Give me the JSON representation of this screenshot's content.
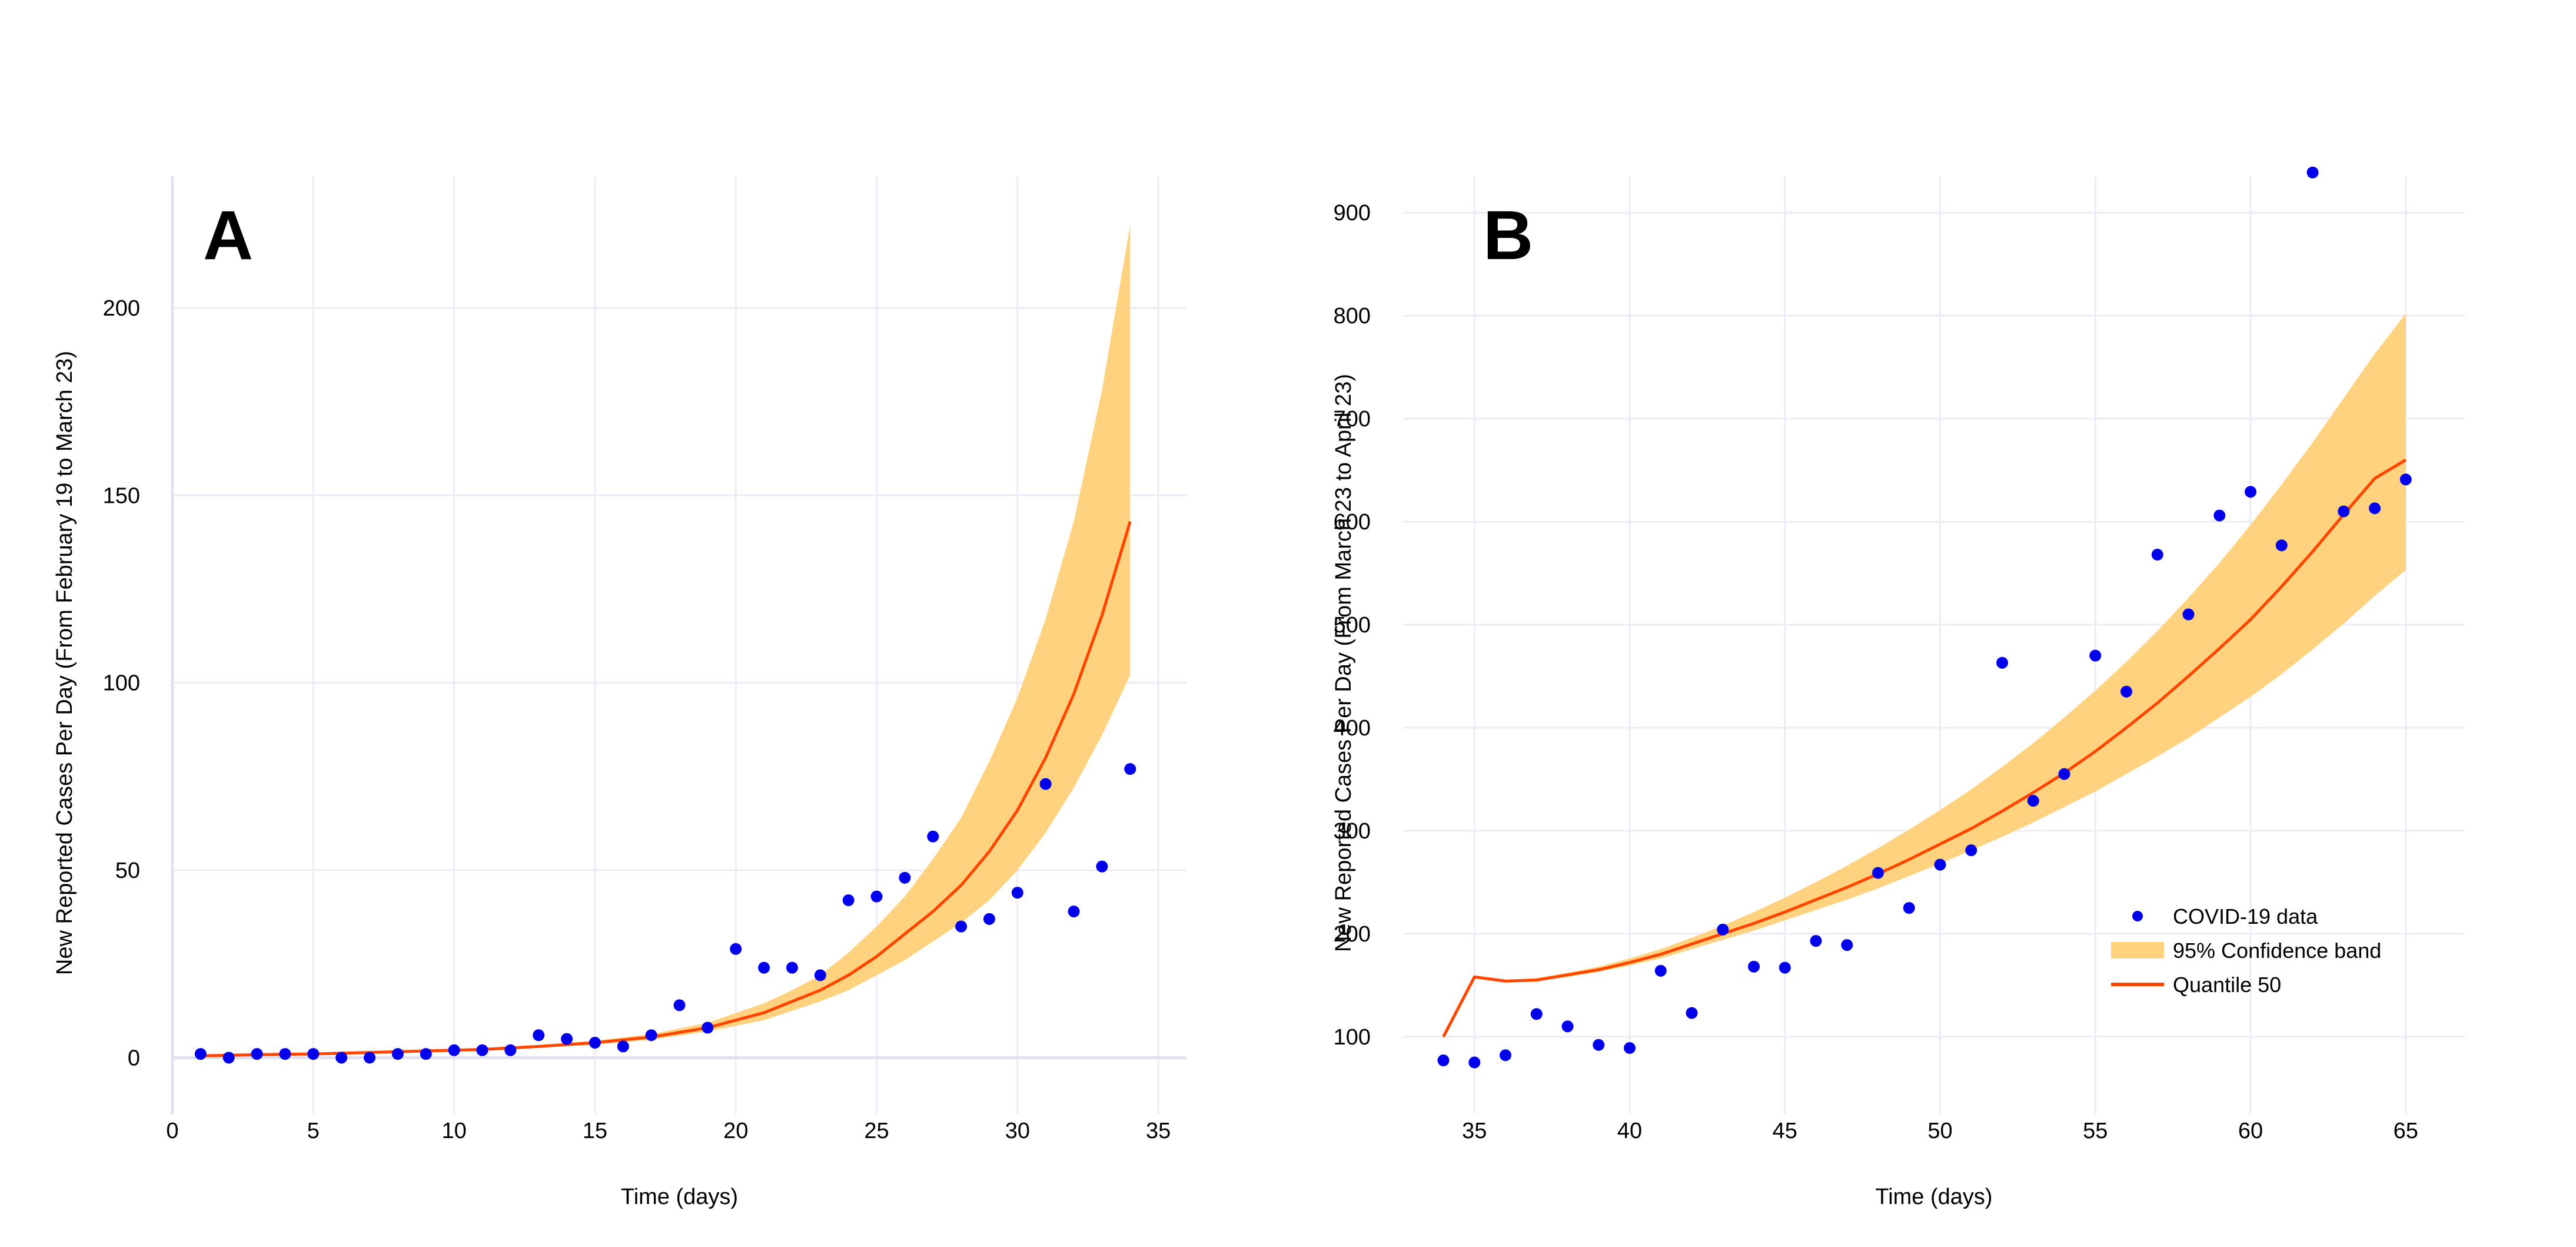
{
  "colors": {
    "points": "#0000ee",
    "band": "#fed27f",
    "median": "#ff4500",
    "grid": "#ececf6",
    "axis": "#e0e0f0"
  },
  "legend": {
    "points_label": "COVID-19 data",
    "band_label": "95% Confidence band",
    "median_label": "Quantile 50"
  },
  "chart_data": [
    {
      "type": "scatter",
      "panel_label": "A",
      "xlabel": "Time (days)",
      "ylabel": "New Reported Cases Per Day (From February 19 to March 23)",
      "xlim": [
        0,
        36
      ],
      "ylim": [
        -15,
        235
      ],
      "xticks": [
        0,
        5,
        10,
        15,
        20,
        25,
        30,
        35
      ],
      "yticks": [
        0,
        50,
        100,
        150,
        200
      ],
      "grid": true,
      "legend": "none",
      "points": {
        "x": [
          1,
          2,
          3,
          4,
          5,
          6,
          7,
          8,
          9,
          10,
          11,
          12,
          13,
          14,
          15,
          16,
          17,
          18,
          19,
          20,
          21,
          22,
          23,
          24,
          25,
          26,
          27,
          28,
          29,
          30,
          31,
          32,
          33,
          34
        ],
        "y": [
          1,
          0,
          1,
          1,
          1,
          0,
          0,
          1,
          1,
          2,
          2,
          2,
          6,
          5,
          4,
          3,
          6,
          14,
          8,
          29,
          24,
          24,
          22,
          42,
          43,
          48,
          59,
          35,
          37,
          44,
          73,
          39,
          51,
          77
        ]
      },
      "median": {
        "x": [
          1,
          3,
          5,
          7,
          9,
          11,
          13,
          15,
          17,
          19,
          21,
          22,
          23,
          24,
          25,
          26,
          27,
          28,
          29,
          30,
          31,
          32,
          33,
          34
        ],
        "y": [
          0.5,
          0.8,
          1,
          1.4,
          1.8,
          2.2,
          3,
          4,
          5.5,
          8,
          12,
          15,
          18,
          22,
          27,
          33,
          39,
          46,
          55,
          66,
          80,
          97,
          118,
          143
        ]
      },
      "band": {
        "x": [
          1,
          3,
          5,
          7,
          9,
          11,
          13,
          15,
          17,
          19,
          21,
          22,
          23,
          24,
          25,
          26,
          27,
          28,
          29,
          30,
          31,
          32,
          33,
          34
        ],
        "lower": [
          0.4,
          0.7,
          0.9,
          1.2,
          1.6,
          2,
          2.7,
          3.5,
          4.8,
          7,
          10,
          12.5,
          15,
          18,
          22,
          26,
          31,
          36,
          42,
          50,
          60,
          72,
          86,
          102
        ],
        "upper": [
          0.6,
          0.9,
          1.1,
          1.6,
          2,
          2.5,
          3.4,
          4.5,
          6.3,
          9.3,
          14.5,
          18,
          22,
          28,
          35,
          43,
          53,
          64,
          79,
          96,
          117,
          143,
          178,
          222
        ]
      }
    },
    {
      "type": "scatter",
      "panel_label": "B",
      "xlabel": "Time (days)",
      "ylabel": "New Reported Cases Per Day (From March 23 to April 23)",
      "xlim": [
        32.7,
        66.9
      ],
      "ylim": [
        25,
        935
      ],
      "xticks": [
        35,
        40,
        45,
        50,
        55,
        60,
        65
      ],
      "yticks": [
        100,
        200,
        300,
        400,
        500,
        600,
        700,
        800,
        900
      ],
      "grid": true,
      "legend": "bottom-right",
      "points": {
        "x": [
          34,
          35,
          36,
          37,
          38,
          39,
          40,
          41,
          42,
          43,
          44,
          45,
          46,
          47,
          48,
          49,
          50,
          51,
          52,
          53,
          54,
          55,
          56,
          57,
          58,
          59,
          60,
          61,
          62,
          63,
          64,
          65
        ],
        "y": [
          77,
          75,
          82,
          122,
          110,
          92,
          89,
          164,
          123,
          204,
          168,
          167,
          193,
          189,
          259,
          225,
          267,
          281,
          463,
          329,
          355,
          470,
          435,
          568,
          510,
          606,
          629,
          577,
          939,
          610,
          613,
          641
        ]
      },
      "median": {
        "x": [
          34,
          35,
          36,
          37,
          38,
          39,
          40,
          41,
          42,
          43,
          44,
          45,
          46,
          47,
          48,
          49,
          50,
          51,
          52,
          53,
          54,
          55,
          56,
          57,
          58,
          59,
          60,
          61,
          62,
          63,
          64,
          65
        ],
        "y": [
          100,
          158,
          154,
          155,
          160,
          165,
          172,
          180,
          190,
          200,
          210,
          221,
          233,
          245,
          258,
          272,
          287,
          302,
          319,
          337,
          356,
          377,
          400,
          424,
          450,
          477,
          505,
          537,
          571,
          607,
          642,
          660
        ]
      },
      "band": {
        "x": [
          34,
          35,
          36,
          37,
          38,
          39,
          40,
          41,
          42,
          43,
          44,
          45,
          46,
          47,
          48,
          49,
          50,
          51,
          52,
          53,
          54,
          55,
          56,
          57,
          58,
          59,
          60,
          61,
          62,
          63,
          64,
          65
        ],
        "lower": [
          100,
          158,
          153,
          154,
          158,
          163,
          169,
          176,
          185,
          194,
          203,
          213,
          223,
          233,
          244,
          256,
          268,
          281,
          294,
          308,
          323,
          338,
          355,
          372,
          390,
          410,
          430,
          452,
          476,
          501,
          528,
          553
        ],
        "upper": [
          100,
          158,
          155,
          157,
          162,
          168,
          176,
          185,
          196,
          208,
          221,
          235,
          250,
          266,
          283,
          301,
          320,
          340,
          362,
          385,
          410,
          436,
          464,
          494,
          526,
          560,
          597,
          636,
          677,
          720,
          763,
          802
        ]
      }
    }
  ]
}
